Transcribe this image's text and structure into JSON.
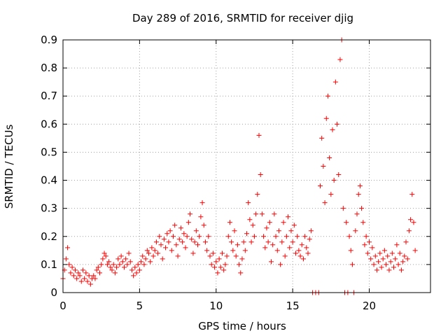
{
  "chart_data": {
    "type": "scatter",
    "title": "Day 289 of 2016, SRMTID for receiver djig",
    "xlabel": "GPS time / hours",
    "ylabel": "SRMTID / TECUs",
    "xlim": [
      0,
      24
    ],
    "ylim": [
      0,
      0.9
    ],
    "xticks": [
      "0",
      "5",
      "10",
      "15",
      "20"
    ],
    "xtick_values": [
      0,
      5,
      10,
      15,
      20
    ],
    "yticks": [
      "0",
      "0.1",
      "0.2",
      "0.3",
      "0.4",
      "0.5",
      "0.6",
      "0.7",
      "0.8",
      "0.9"
    ],
    "ytick_values": [
      0,
      0.1,
      0.2,
      0.3,
      0.4,
      0.5,
      0.6,
      0.7,
      0.8,
      0.9
    ],
    "grid": true,
    "marker": "+",
    "color": "#ff0000",
    "series": [
      {
        "name": "SRMTID",
        "points": [
          [
            0.0,
            0.05
          ],
          [
            0.1,
            0.08
          ],
          [
            0.2,
            0.12
          ],
          [
            0.3,
            0.16
          ],
          [
            0.4,
            0.1
          ],
          [
            0.5,
            0.07
          ],
          [
            0.6,
            0.09
          ],
          [
            0.7,
            0.06
          ],
          [
            0.8,
            0.08
          ],
          [
            0.9,
            0.05
          ],
          [
            1.0,
            0.07
          ],
          [
            1.1,
            0.06
          ],
          [
            1.2,
            0.04
          ],
          [
            1.3,
            0.08
          ],
          [
            1.4,
            0.05
          ],
          [
            1.5,
            0.07
          ],
          [
            1.6,
            0.04
          ],
          [
            1.7,
            0.06
          ],
          [
            1.8,
            0.03
          ],
          [
            1.9,
            0.05
          ],
          [
            2.0,
            0.06
          ],
          [
            2.1,
            0.05
          ],
          [
            2.2,
            0.08
          ],
          [
            2.3,
            0.09
          ],
          [
            2.4,
            0.07
          ],
          [
            2.5,
            0.1
          ],
          [
            2.6,
            0.12
          ],
          [
            2.7,
            0.14
          ],
          [
            2.8,
            0.13
          ],
          [
            2.9,
            0.1
          ],
          [
            3.0,
            0.11
          ],
          [
            3.1,
            0.09
          ],
          [
            3.2,
            0.08
          ],
          [
            3.3,
            0.1
          ],
          [
            3.4,
            0.07
          ],
          [
            3.5,
            0.09
          ],
          [
            3.6,
            0.12
          ],
          [
            3.7,
            0.1
          ],
          [
            3.8,
            0.13
          ],
          [
            3.9,
            0.11
          ],
          [
            4.0,
            0.09
          ],
          [
            4.1,
            0.12
          ],
          [
            4.2,
            0.1
          ],
          [
            4.3,
            0.14
          ],
          [
            4.4,
            0.11
          ],
          [
            4.5,
            0.08
          ],
          [
            4.6,
            0.06
          ],
          [
            4.7,
            0.09
          ],
          [
            4.8,
            0.07
          ],
          [
            4.9,
            0.1
          ],
          [
            5.0,
            0.08
          ],
          [
            5.1,
            0.11
          ],
          [
            5.2,
            0.13
          ],
          [
            5.3,
            0.1
          ],
          [
            5.4,
            0.12
          ],
          [
            5.5,
            0.15
          ],
          [
            5.6,
            0.14
          ],
          [
            5.7,
            0.11
          ],
          [
            5.8,
            0.16
          ],
          [
            5.9,
            0.13
          ],
          [
            6.0,
            0.15
          ],
          [
            6.1,
            0.18
          ],
          [
            6.2,
            0.14
          ],
          [
            6.3,
            0.2
          ],
          [
            6.4,
            0.17
          ],
          [
            6.5,
            0.12
          ],
          [
            6.6,
            0.19
          ],
          [
            6.7,
            0.16
          ],
          [
            6.8,
            0.21
          ],
          [
            6.9,
            0.18
          ],
          [
            7.0,
            0.22
          ],
          [
            7.1,
            0.15
          ],
          [
            7.2,
            0.2
          ],
          [
            7.3,
            0.24
          ],
          [
            7.4,
            0.17
          ],
          [
            7.5,
            0.13
          ],
          [
            7.6,
            0.19
          ],
          [
            7.7,
            0.23
          ],
          [
            7.8,
            0.18
          ],
          [
            7.9,
            0.21
          ],
          [
            8.0,
            0.16
          ],
          [
            8.1,
            0.2
          ],
          [
            8.2,
            0.25
          ],
          [
            8.3,
            0.28
          ],
          [
            8.4,
            0.19
          ],
          [
            8.5,
            0.14
          ],
          [
            8.6,
            0.18
          ],
          [
            8.7,
            0.22
          ],
          [
            8.8,
            0.17
          ],
          [
            8.9,
            0.2
          ],
          [
            9.0,
            0.27
          ],
          [
            9.1,
            0.32
          ],
          [
            9.2,
            0.24
          ],
          [
            9.3,
            0.18
          ],
          [
            9.4,
            0.15
          ],
          [
            9.5,
            0.2
          ],
          [
            9.6,
            0.13
          ],
          [
            9.7,
            0.1
          ],
          [
            9.8,
            0.14
          ],
          [
            9.9,
            0.09
          ],
          [
            10.0,
            0.11
          ],
          [
            10.1,
            0.07
          ],
          [
            10.2,
            0.12
          ],
          [
            10.3,
            0.09
          ],
          [
            10.4,
            0.14
          ],
          [
            10.5,
            0.08
          ],
          [
            10.6,
            0.1
          ],
          [
            10.7,
            0.13
          ],
          [
            10.8,
            0.2
          ],
          [
            10.9,
            0.25
          ],
          [
            11.0,
            0.18
          ],
          [
            11.1,
            0.15
          ],
          [
            11.2,
            0.22
          ],
          [
            11.3,
            0.13
          ],
          [
            11.4,
            0.17
          ],
          [
            11.5,
            0.1
          ],
          [
            11.6,
            0.07
          ],
          [
            11.7,
            0.12
          ],
          [
            11.8,
            0.18
          ],
          [
            11.9,
            0.15
          ],
          [
            12.0,
            0.21
          ],
          [
            12.1,
            0.32
          ],
          [
            12.2,
            0.26
          ],
          [
            12.3,
            0.18
          ],
          [
            12.4,
            0.24
          ],
          [
            12.5,
            0.2
          ],
          [
            12.6,
            0.28
          ],
          [
            12.7,
            0.35
          ],
          [
            12.8,
            0.56
          ],
          [
            12.9,
            0.42
          ],
          [
            13.0,
            0.28
          ],
          [
            13.1,
            0.2
          ],
          [
            13.2,
            0.16
          ],
          [
            13.3,
            0.23
          ],
          [
            13.4,
            0.18
          ],
          [
            13.5,
            0.25
          ],
          [
            13.6,
            0.11
          ],
          [
            13.7,
            0.17
          ],
          [
            13.8,
            0.28
          ],
          [
            13.9,
            0.2
          ],
          [
            14.0,
            0.15
          ],
          [
            14.1,
            0.22
          ],
          [
            14.2,
            0.1
          ],
          [
            14.3,
            0.18
          ],
          [
            14.4,
            0.25
          ],
          [
            14.5,
            0.13
          ],
          [
            14.6,
            0.2
          ],
          [
            14.7,
            0.27
          ],
          [
            14.8,
            0.16
          ],
          [
            14.9,
            0.22
          ],
          [
            15.0,
            0.18
          ],
          [
            15.1,
            0.24
          ],
          [
            15.2,
            0.14
          ],
          [
            15.3,
            0.2
          ],
          [
            15.4,
            0.15
          ],
          [
            15.5,
            0.13
          ],
          [
            15.6,
            0.17
          ],
          [
            15.7,
            0.12
          ],
          [
            15.8,
            0.2
          ],
          [
            15.9,
            0.16
          ],
          [
            16.0,
            0.14
          ],
          [
            16.1,
            0.19
          ],
          [
            16.2,
            0.22
          ],
          [
            16.3,
            0.0
          ],
          [
            16.5,
            0.0
          ],
          [
            16.7,
            0.0
          ],
          [
            16.8,
            0.38
          ],
          [
            16.9,
            0.55
          ],
          [
            17.0,
            0.45
          ],
          [
            17.1,
            0.32
          ],
          [
            17.2,
            0.62
          ],
          [
            17.3,
            0.7
          ],
          [
            17.4,
            0.48
          ],
          [
            17.5,
            0.35
          ],
          [
            17.6,
            0.58
          ],
          [
            17.7,
            0.4
          ],
          [
            17.8,
            0.75
          ],
          [
            17.9,
            0.6
          ],
          [
            18.0,
            0.42
          ],
          [
            18.1,
            0.83
          ],
          [
            18.2,
            0.9
          ],
          [
            18.3,
            0.3
          ],
          [
            18.4,
            0.0
          ],
          [
            18.5,
            0.25
          ],
          [
            18.6,
            0.0
          ],
          [
            18.7,
            0.2
          ],
          [
            18.8,
            0.15
          ],
          [
            18.9,
            0.1
          ],
          [
            19.0,
            0.0
          ],
          [
            19.1,
            0.22
          ],
          [
            19.2,
            0.28
          ],
          [
            19.3,
            0.35
          ],
          [
            19.4,
            0.38
          ],
          [
            19.5,
            0.3
          ],
          [
            19.6,
            0.25
          ],
          [
            19.7,
            0.17
          ],
          [
            19.8,
            0.2
          ],
          [
            19.9,
            0.14
          ],
          [
            20.0,
            0.18
          ],
          [
            20.1,
            0.12
          ],
          [
            20.2,
            0.16
          ],
          [
            20.3,
            0.1
          ],
          [
            20.4,
            0.13
          ],
          [
            20.5,
            0.08
          ],
          [
            20.6,
            0.11
          ],
          [
            20.7,
            0.14
          ],
          [
            20.8,
            0.09
          ],
          [
            20.9,
            0.12
          ],
          [
            21.0,
            0.15
          ],
          [
            21.1,
            0.1
          ],
          [
            21.2,
            0.13
          ],
          [
            21.3,
            0.08
          ],
          [
            21.4,
            0.11
          ],
          [
            21.5,
            0.14
          ],
          [
            21.6,
            0.09
          ],
          [
            21.7,
            0.12
          ],
          [
            21.8,
            0.17
          ],
          [
            21.9,
            0.1
          ],
          [
            22.0,
            0.14
          ],
          [
            22.1,
            0.08
          ],
          [
            22.2,
            0.11
          ],
          [
            22.3,
            0.13
          ],
          [
            22.4,
            0.18
          ],
          [
            22.5,
            0.12
          ],
          [
            22.6,
            0.22
          ],
          [
            22.7,
            0.26
          ],
          [
            22.8,
            0.35
          ],
          [
            22.9,
            0.25
          ],
          [
            23.0,
            0.15
          ]
        ]
      }
    ]
  }
}
